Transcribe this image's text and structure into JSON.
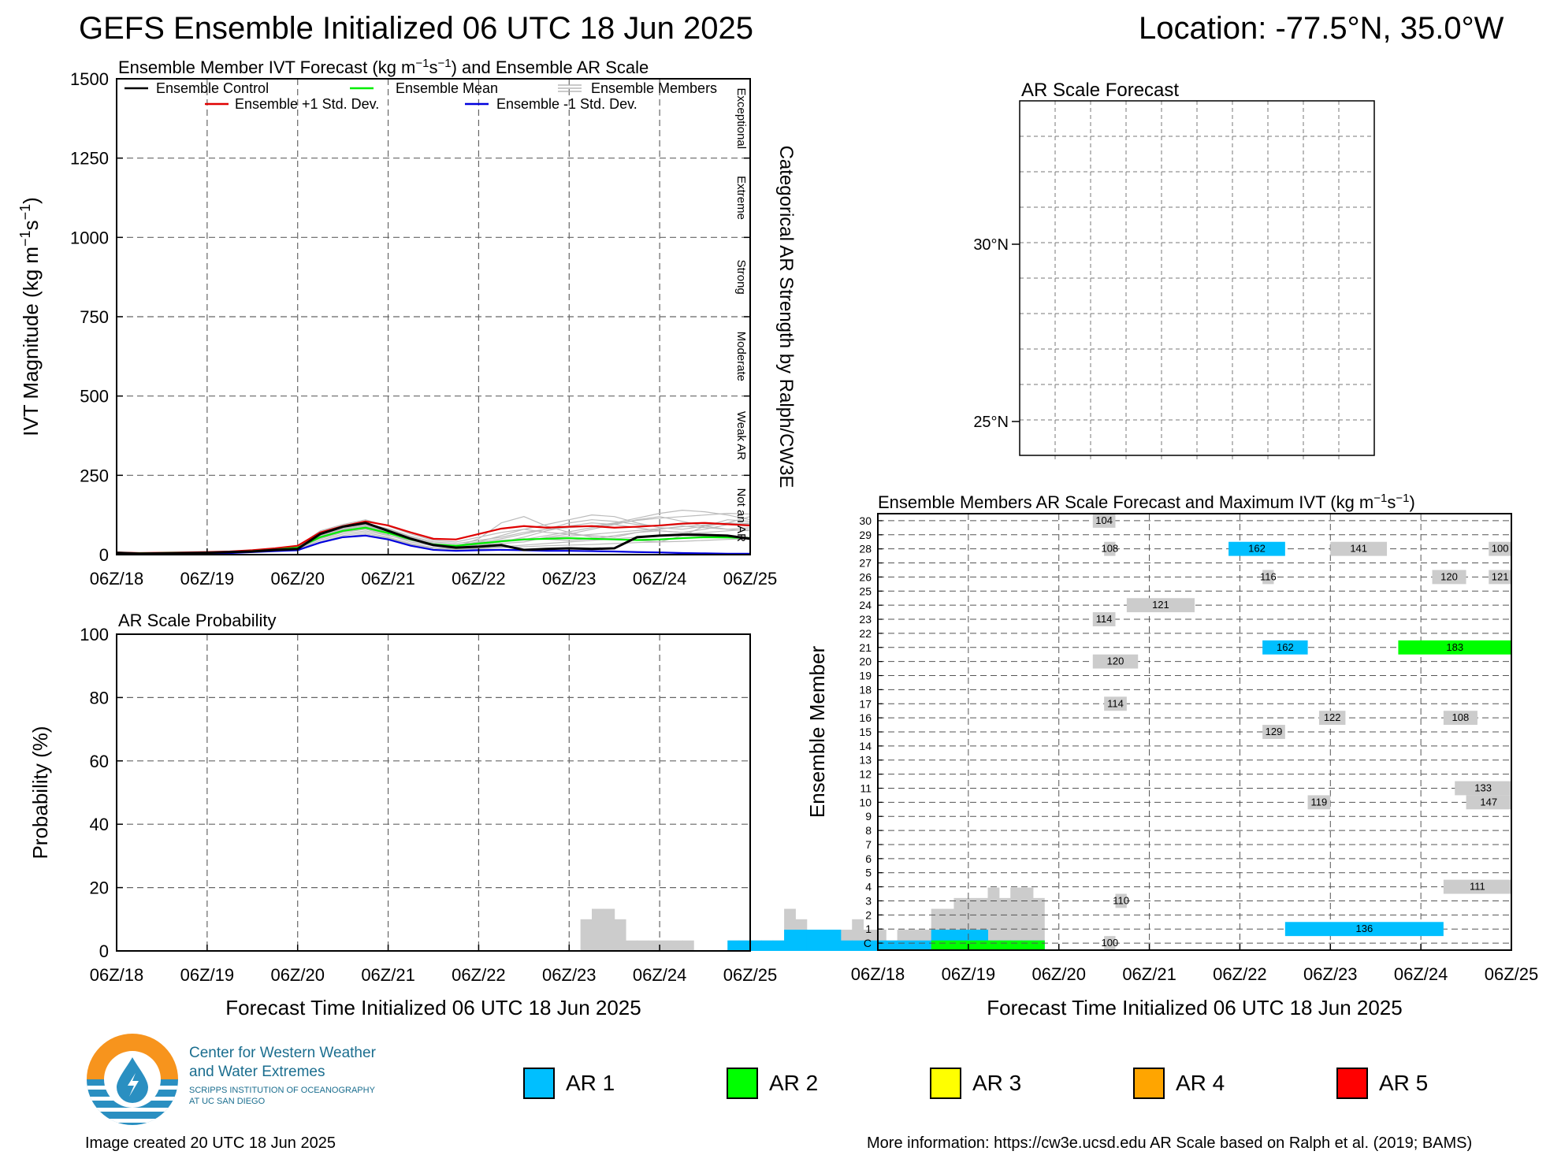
{
  "header": {
    "title": "GEFS Ensemble Initialized 06 UTC 18 Jun 2025",
    "location": "Location: -77.5°N, 35.0°W"
  },
  "time_ticks": [
    "06Z/18",
    "06Z/19",
    "06Z/20",
    "06Z/21",
    "06Z/22",
    "06Z/23",
    "06Z/24",
    "06Z/25"
  ],
  "xlabel": "Forecast Time Initialized 06 UTC 18 Jun 2025",
  "colors": {
    "control": "#000000",
    "mean": "#00ee00",
    "plus_std": "#e00000",
    "minus_std": "#0000dd",
    "members": "#bbbbbb",
    "ar1": "#00bfff",
    "ar2": "#00ff00",
    "ar3": "#ffff00",
    "ar4": "#ffa500",
    "ar5": "#ff0000",
    "grey": "#cccccc"
  },
  "chart_data": [
    {
      "id": "ivt",
      "type": "line",
      "title": "Ensemble Member IVT Forecast (kg m⁻¹s⁻¹) and Ensemble AR Scale",
      "ylabel": "IVT Magnitude (kg m⁻¹s⁻¹)",
      "y2label": "Categorical AR Strength by Ralph/CW3E",
      "ylim": [
        0,
        1500
      ],
      "yticks": [
        0,
        250,
        500,
        750,
        1000,
        1250,
        1500
      ],
      "categories_right": [
        "Not an AR",
        "Weak AR",
        "Moderate",
        "Strong",
        "Extreme",
        "Exceptional"
      ],
      "legend": {
        "control": "Ensemble Control",
        "mean": "Ensemble Mean",
        "members": "Ensemble Members",
        "plus_std": "Ensemble +1 Std. Dev.",
        "minus_std": "Ensemble -1 Std. Dev."
      },
      "x_hours": [
        0,
        6,
        12,
        18,
        24,
        30,
        36,
        42,
        48,
        54,
        60,
        66,
        72,
        78,
        84,
        90,
        96,
        102,
        108,
        114,
        120,
        126,
        132,
        138,
        144,
        150,
        156,
        162,
        168
      ],
      "series": [
        {
          "key": "control",
          "values": [
            6,
            3,
            4,
            5,
            6,
            8,
            10,
            15,
            18,
            65,
            88,
            100,
            75,
            50,
            30,
            22,
            25,
            30,
            15,
            18,
            20,
            18,
            20,
            55,
            60,
            63,
            62,
            60,
            50
          ]
        },
        {
          "key": "mean",
          "values": [
            5,
            4,
            5,
            6,
            6,
            8,
            11,
            16,
            22,
            55,
            75,
            85,
            68,
            48,
            32,
            28,
            35,
            42,
            48,
            50,
            52,
            50,
            48,
            46,
            48,
            52,
            55,
            54,
            52
          ]
        },
        {
          "key": "plus_std",
          "values": [
            7,
            5,
            6,
            7,
            8,
            10,
            14,
            20,
            28,
            70,
            90,
            105,
            92,
            70,
            50,
            48,
            65,
            82,
            90,
            85,
            88,
            90,
            85,
            88,
            92,
            98,
            100,
            96,
            92
          ]
        },
        {
          "key": "minus_std",
          "values": [
            3,
            2,
            3,
            4,
            4,
            5,
            8,
            11,
            14,
            38,
            55,
            60,
            48,
            28,
            15,
            12,
            14,
            15,
            14,
            12,
            12,
            11,
            10,
            8,
            7,
            5,
            4,
            3,
            3
          ]
        }
      ],
      "members": [
        [
          5,
          4,
          5,
          6,
          7,
          9,
          12,
          18,
          25,
          70,
          85,
          95,
          80,
          55,
          35,
          30,
          40,
          60,
          80,
          70,
          65,
          60,
          55,
          70,
          80,
          90,
          85,
          80,
          75
        ],
        [
          6,
          4,
          5,
          6,
          6,
          8,
          10,
          15,
          20,
          50,
          70,
          80,
          62,
          40,
          28,
          25,
          50,
          100,
          120,
          90,
          70,
          55,
          50,
          45,
          40,
          60,
          90,
          110,
          105
        ],
        [
          4,
          3,
          4,
          5,
          6,
          7,
          9,
          14,
          18,
          45,
          65,
          75,
          60,
          45,
          30,
          22,
          30,
          35,
          40,
          55,
          65,
          80,
          95,
          110,
          120,
          105,
          90,
          80,
          85
        ],
        [
          5,
          4,
          5,
          6,
          7,
          9,
          12,
          17,
          22,
          60,
          80,
          90,
          75,
          52,
          34,
          28,
          35,
          45,
          50,
          48,
          45,
          50,
          60,
          70,
          75,
          70,
          65,
          60,
          55
        ],
        [
          6,
          5,
          6,
          7,
          8,
          10,
          13,
          19,
          26,
          75,
          95,
          110,
          90,
          65,
          45,
          40,
          55,
          70,
          80,
          95,
          110,
          125,
          120,
          100,
          85,
          80,
          90,
          100,
          120
        ],
        [
          4,
          3,
          4,
          5,
          5,
          7,
          9,
          13,
          17,
          40,
          60,
          70,
          55,
          35,
          22,
          18,
          20,
          25,
          30,
          35,
          40,
          45,
          50,
          55,
          60,
          65,
          70,
          75,
          80
        ],
        [
          5,
          4,
          5,
          6,
          7,
          8,
          11,
          16,
          21,
          55,
          72,
          82,
          70,
          48,
          30,
          26,
          30,
          40,
          55,
          75,
          90,
          100,
          95,
          85,
          75,
          70,
          80,
          95,
          100
        ],
        [
          6,
          5,
          6,
          7,
          8,
          10,
          13,
          18,
          24,
          65,
          88,
          98,
          82,
          58,
          40,
          35,
          45,
          55,
          70,
          80,
          85,
          90,
          100,
          115,
          130,
          140,
          135,
          125,
          110
        ],
        [
          4,
          3,
          4,
          4,
          5,
          7,
          9,
          13,
          16,
          38,
          55,
          65,
          52,
          32,
          20,
          16,
          18,
          22,
          25,
          28,
          30,
          32,
          35,
          38,
          40,
          42,
          45,
          48,
          50
        ],
        [
          5,
          4,
          5,
          6,
          7,
          9,
          12,
          17,
          23,
          62,
          82,
          92,
          78,
          54,
          36,
          30,
          38,
          50,
          65,
          80,
          100,
          110,
          105,
          95,
          90,
          95,
          100,
          95,
          90
        ],
        [
          6,
          4,
          5,
          6,
          7,
          9,
          11,
          16,
          22,
          58,
          78,
          88,
          72,
          50,
          33,
          28,
          33,
          42,
          48,
          60,
          72,
          85,
          98,
          108,
          115,
          120,
          125,
          130,
          128
        ],
        [
          5,
          4,
          5,
          5,
          6,
          8,
          10,
          15,
          20,
          52,
          72,
          82,
          66,
          46,
          31,
          27,
          32,
          40,
          46,
          52,
          58,
          64,
          70,
          76,
          82,
          88,
          94,
          100,
          96
        ]
      ]
    },
    {
      "id": "prob",
      "type": "bar",
      "title": "AR Scale Probability",
      "ylabel": "Probability (%)",
      "ylim": [
        0,
        100
      ],
      "yticks": [
        0,
        20,
        40,
        60,
        80,
        100
      ],
      "bin_hours": 3,
      "bins_start_hour": 0,
      "any_ar": [
        0,
        0,
        0,
        0,
        0,
        0,
        0,
        0,
        0,
        0,
        0,
        0,
        0,
        0,
        0,
        0,
        0,
        0,
        0,
        0,
        0,
        0,
        0,
        0,
        0,
        0,
        0,
        0,
        0,
        0,
        0,
        0,
        0,
        0,
        0,
        0,
        0,
        0,
        0,
        0,
        0,
        10,
        13.3,
        13.3,
        10,
        3.3,
        3.3,
        3.3,
        3.3,
        3.3,
        3.3,
        0,
        0,
        0,
        3.3,
        3.3,
        3.3,
        3.3,
        3.3,
        13.3,
        10,
        6.7,
        6.7,
        6.7,
        6.7,
        10,
        6.7,
        6.7,
        3.3,
        6.7,
        6.7,
        6.7,
        13.3,
        13.3,
        16.7,
        16.7,
        16.7,
        20,
        16.7,
        20,
        20,
        16.7
      ],
      "ar1": [
        0,
        0,
        0,
        0,
        0,
        0,
        0,
        0,
        0,
        0,
        0,
        0,
        0,
        0,
        0,
        0,
        0,
        0,
        0,
        0,
        0,
        0,
        0,
        0,
        0,
        0,
        0,
        0,
        0,
        0,
        0,
        0,
        0,
        0,
        0,
        0,
        0,
        0,
        0,
        0,
        0,
        0,
        0,
        0,
        0,
        0,
        0,
        0,
        0,
        0,
        0,
        0,
        0,
        0,
        3.3,
        3.3,
        3.3,
        3.3,
        3.3,
        6.7,
        6.7,
        6.7,
        6.7,
        6.7,
        3.3,
        3.3,
        3.3,
        3.3,
        3.3,
        3.3,
        3.3,
        3.3,
        6.7,
        6.7,
        6.7,
        6.7,
        6.7,
        3.3,
        3.3,
        3.3,
        3.3,
        3.3
      ],
      "ar2": [
        0,
        0,
        0,
        0,
        0,
        0,
        0,
        0,
        0,
        0,
        0,
        0,
        0,
        0,
        0,
        0,
        0,
        0,
        0,
        0,
        0,
        0,
        0,
        0,
        0,
        0,
        0,
        0,
        0,
        0,
        0,
        0,
        0,
        0,
        0,
        0,
        0,
        0,
        0,
        0,
        0,
        0,
        0,
        0,
        0,
        0,
        0,
        0,
        0,
        0,
        0,
        0,
        0,
        0,
        0,
        0,
        0,
        0,
        0,
        0,
        0,
        0,
        0,
        0,
        0,
        0,
        0,
        0,
        0,
        0,
        0,
        0,
        3.3,
        3.3,
        3.3,
        3.3,
        3.3,
        3.3,
        3.3,
        3.3,
        3.3,
        3.3
      ]
    },
    {
      "id": "map",
      "type": "heatmap",
      "title": "AR Scale Forecast",
      "lat_labels": [
        "30°N",
        "25°N"
      ]
    },
    {
      "id": "members",
      "type": "heatmap",
      "title": "Ensemble Members AR Scale Forecast and Maximum IVT (kg m⁻¹s⁻¹)",
      "ylabel": "Ensemble Member",
      "members": [
        "C",
        "1",
        "2",
        "3",
        "4",
        "5",
        "6",
        "7",
        "8",
        "9",
        "10",
        "11",
        "12",
        "13",
        "14",
        "15",
        "16",
        "17",
        "18",
        "19",
        "20",
        "21",
        "22",
        "23",
        "24",
        "25",
        "26",
        "27",
        "28",
        "29",
        "30"
      ],
      "events": [
        {
          "member": "30",
          "start_h": 57,
          "end_h": 63,
          "cat": 0,
          "max_ivt": "104"
        },
        {
          "member": "28",
          "start_h": 60,
          "end_h": 63,
          "cat": 0,
          "max_ivt": "108"
        },
        {
          "member": "28",
          "start_h": 93,
          "end_h": 108,
          "cat": 1,
          "max_ivt": "162"
        },
        {
          "member": "28",
          "start_h": 120,
          "end_h": 135,
          "cat": 0,
          "max_ivt": "141"
        },
        {
          "member": "28",
          "start_h": 162,
          "end_h": 168,
          "cat": 0,
          "max_ivt": "100"
        },
        {
          "member": "26",
          "start_h": 102,
          "end_h": 105,
          "cat": 0,
          "max_ivt": "116"
        },
        {
          "member": "26",
          "start_h": 147,
          "end_h": 156,
          "cat": 0,
          "max_ivt": "120"
        },
        {
          "member": "26",
          "start_h": 162,
          "end_h": 168,
          "cat": 0,
          "max_ivt": "121"
        },
        {
          "member": "24",
          "start_h": 66,
          "end_h": 84,
          "cat": 0,
          "max_ivt": "121"
        },
        {
          "member": "23",
          "start_h": 57,
          "end_h": 63,
          "cat": 0,
          "max_ivt": "114"
        },
        {
          "member": "21",
          "start_h": 102,
          "end_h": 114,
          "cat": 1,
          "max_ivt": "162"
        },
        {
          "member": "21",
          "start_h": 138,
          "end_h": 168,
          "cat": 2,
          "max_ivt": "183"
        },
        {
          "member": "20",
          "start_h": 57,
          "end_h": 69,
          "cat": 0,
          "max_ivt": "120"
        },
        {
          "member": "17",
          "start_h": 60,
          "end_h": 66,
          "cat": 0,
          "max_ivt": "114"
        },
        {
          "member": "16",
          "start_h": 117,
          "end_h": 124,
          "cat": 0,
          "max_ivt": "122"
        },
        {
          "member": "16",
          "start_h": 150,
          "end_h": 159,
          "cat": 0,
          "max_ivt": "108"
        },
        {
          "member": "15",
          "start_h": 102,
          "end_h": 108,
          "cat": 0,
          "max_ivt": "129"
        },
        {
          "member": "11",
          "start_h": 153,
          "end_h": 168,
          "cat": 0,
          "max_ivt": "133"
        },
        {
          "member": "10",
          "start_h": 114,
          "end_h": 120,
          "cat": 0,
          "max_ivt": "119"
        },
        {
          "member": "10",
          "start_h": 156,
          "end_h": 168,
          "cat": 0,
          "max_ivt": "147"
        },
        {
          "member": "4",
          "start_h": 150,
          "end_h": 168,
          "cat": 0,
          "max_ivt": "111"
        },
        {
          "member": "3",
          "start_h": 63,
          "end_h": 66,
          "cat": 0,
          "max_ivt": "110"
        },
        {
          "member": "1",
          "start_h": 108,
          "end_h": 150,
          "cat": 1,
          "max_ivt": "136"
        },
        {
          "member": "C",
          "start_h": 60,
          "end_h": 63,
          "cat": 0,
          "max_ivt": "100"
        }
      ]
    }
  ],
  "legend_ar": [
    {
      "label": "AR 1",
      "color": "#00bfff"
    },
    {
      "label": "AR 2",
      "color": "#00ff00"
    },
    {
      "label": "AR 3",
      "color": "#ffff00"
    },
    {
      "label": "AR 4",
      "color": "#ffa500"
    },
    {
      "label": "AR 5",
      "color": "#ff0000"
    }
  ],
  "logo": {
    "line1": "Center for Western Weather",
    "line2": "and Water Extremes",
    "line3": "SCRIPPS INSTITUTION OF OCEANOGRAPHY",
    "line4": "AT UC SAN DIEGO",
    "icon": "cw3e-logo-icon"
  },
  "footer": {
    "created": "Image created 20 UTC 18 Jun 2025",
    "info": "More information: https://cw3e.ucsd.edu AR Scale based on Ralph et al. (2019; BAMS)"
  }
}
